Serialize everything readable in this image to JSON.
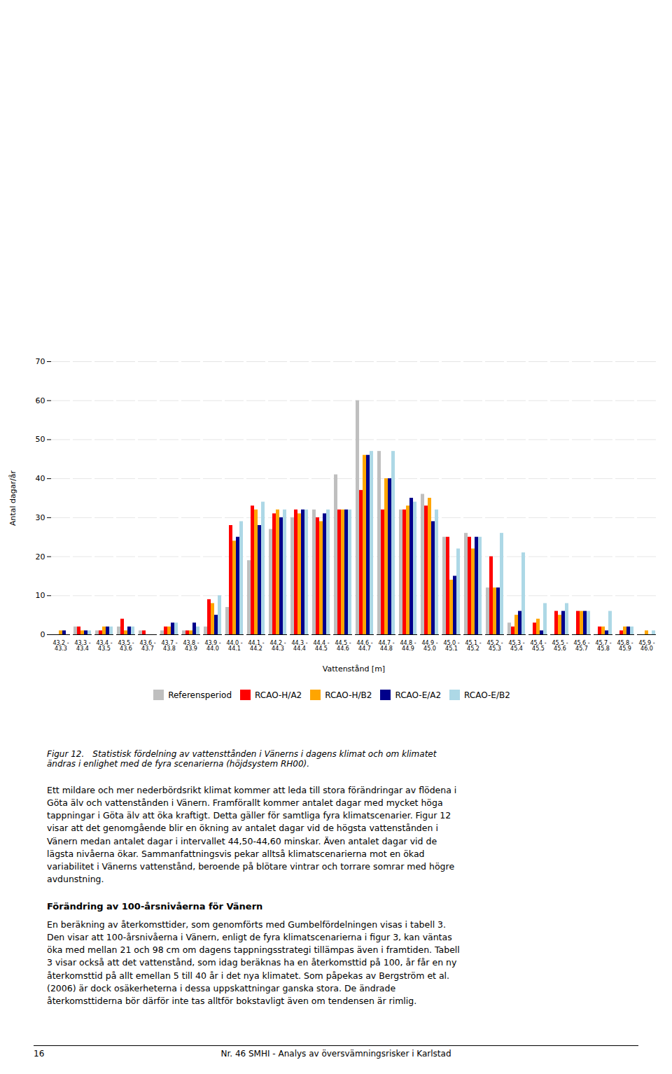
{
  "chart_data": {
    "type": "bar",
    "xlabel": "Vattenstånd [m]",
    "ylabel": "Antal dagar/år",
    "categories": [
      "43.2 -\n43.3",
      "43.3 -\n43.4",
      "43.4 -\n43.5",
      "43.5 -\n43.6",
      "43.6 -\n43.7",
      "43.7 -\n43.8",
      "43.8 -\n43.9",
      "43.9 -\n44.0",
      "44.0 -\n44.1",
      "44.1 -\n44.2",
      "44.2 -\n44.3",
      "44.3 -\n44.4",
      "44.4 -\n44.5",
      "44.5 -\n44.6",
      "44.6 -\n44.7",
      "44.7 -\n44.8",
      "44.8 -\n44.9",
      "44.9 -\n45.0",
      "45.0 -\n45.1",
      "45.1 -\n45.2",
      "45.2 -\n45.3",
      "45.3 -\n45.4",
      "45.4 -\n45.5",
      "45.5 -\n45.6",
      "45.6 -\n45.7",
      "45.7 -\n45.8",
      "45.8 -\n45.9",
      "45.9 -\n46.0"
    ],
    "series": [
      {
        "name": "Referensperiod",
        "color": "#bfbfbf",
        "values": [
          0,
          2,
          1,
          2,
          1,
          1,
          1,
          2,
          7,
          19,
          27,
          30,
          32,
          41,
          60,
          47,
          32,
          36,
          25,
          26,
          12,
          3,
          0,
          0,
          0,
          0,
          0,
          0
        ]
      },
      {
        "name": "RCAO-H/A2",
        "color": "#ff0000",
        "values": [
          0,
          2,
          1,
          4,
          1,
          2,
          1,
          9,
          28,
          33,
          31,
          32,
          30,
          32,
          37,
          32,
          32,
          33,
          25,
          25,
          20,
          2,
          3,
          6,
          6,
          2,
          1,
          0
        ]
      },
      {
        "name": "RCAO-H/B2",
        "color": "#ffa500",
        "values": [
          1,
          1,
          2,
          1,
          0,
          2,
          1,
          8,
          24,
          32,
          32,
          31,
          29,
          32,
          46,
          40,
          33,
          35,
          14,
          22,
          12,
          5,
          4,
          5,
          6,
          2,
          2,
          1
        ]
      },
      {
        "name": "RCAO-E/A2",
        "color": "#00008b",
        "values": [
          1,
          1,
          2,
          2,
          0,
          3,
          3,
          5,
          25,
          28,
          30,
          32,
          31,
          32,
          46,
          40,
          35,
          29,
          15,
          25,
          12,
          6,
          1,
          6,
          6,
          1,
          2,
          0
        ]
      },
      {
        "name": "RCAO-E/B2",
        "color": "#add8e6",
        "values": [
          0,
          1,
          2,
          2,
          0,
          3,
          2,
          10,
          29,
          34,
          32,
          32,
          32,
          32,
          47,
          47,
          34,
          32,
          22,
          25,
          26,
          21,
          8,
          8,
          6,
          6,
          2,
          1
        ]
      }
    ],
    "ylim": [
      0,
      70
    ],
    "yticks": [
      0,
      10,
      20,
      30,
      40,
      50,
      60,
      70
    ],
    "grid": true,
    "legend": "bottom",
    "caption": "Figur 12. Statistisk fördelning av vattensttånden i Vänerns i dagens klimat och om klimatet\nändras i enlighet med de fyra scenarierna (höjdsystem RH00).",
    "annotations": [
      "Ett mildare och mer nederbördsrikt klimat kommer att leda till stora förändringar av flödena i\nGöta älv och vattenstånden i Vänern. Framförallt kommer antalet dagar med mycket höga\ntappningar i Göta älv att öka kraftigt. Detta gäller för samtliga fyra klimatscenarier. Figur 12\nvisar att det genomgående blir en ökning av antalet dagar vid de högsta vattenstånden i\nVänern medan antalet dagar i intervallet 44,50-44,60 minskar. Även antalet dagar vid de\nlägsta nivåerna ökar. Sammanfattningsvis pekar alltså klimatscenarierna mot en ökad\nvariabilitet i Vänerns vattenstånd, beroende på blötare vintrar och torrare somrar med högre\navdunstning.",
      "Förändring av 100-årsnivåerna för Vänern",
      "En beräkning av återkomsttider, som genomförts med Gumbelfördelningen visas i tabell 3.\nDen visar att 100-årsnivåerna i Vänern, enligt de fyra klimatscenarierna i figur 3, kan väntas\nöka med mellan 21 och 98 cm om dagens tappningsstrategi tillämpas även i framtiden. Tabell\n3 visar också att det vattenstånd, som idag beräknas ha en återkomsttid på 100, år får en ny\nåterkomsttid på allt emellan 5 till 40 år i det nya klimatet. Som påpekas av Bergström et al.\n(2006) är dock osäkerheterna i dessa uppskattningar ganska stora. De ändrade\nåterkomsttiderna bör därför inte tas alltför bokstavligt även om tendensen är rimlig.",
      "16",
      "Nr. 46 SMHI - Analys av översvämningsrisker i Karlstad"
    ]
  }
}
